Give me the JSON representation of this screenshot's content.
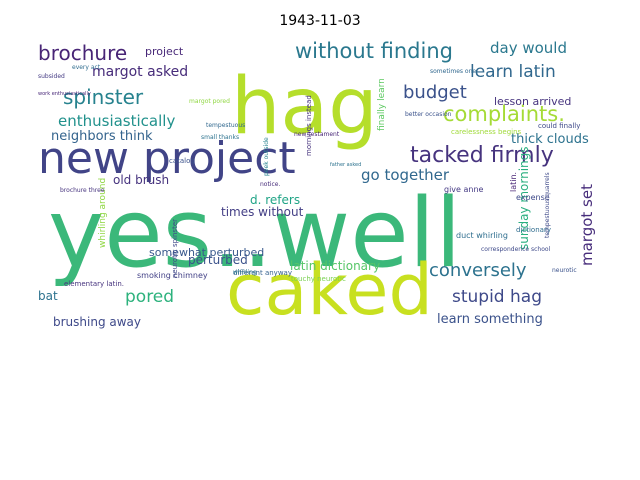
{
  "title": "1943-11-03",
  "words": [
    {
      "text": "yes..well",
      "color": "#3bb87a"
    },
    {
      "text": "hag",
      "color": "#b5de2b"
    },
    {
      "text": "caked",
      "color": "#c8e020"
    },
    {
      "text": "new project",
      "color": "#414487"
    },
    {
      "text": "tacked firmly",
      "color": "#46337e"
    },
    {
      "text": "without finding",
      "color": "#2a788e"
    },
    {
      "text": "complaints.",
      "color": "#a5db36"
    },
    {
      "text": "spinster",
      "color": "#26828e"
    },
    {
      "text": "brochure",
      "color": "#482576"
    },
    {
      "text": "budget",
      "color": "#3b528b"
    },
    {
      "text": "learn latin",
      "color": "#31688e"
    },
    {
      "text": "conversely",
      "color": "#2c728e"
    },
    {
      "text": "stupid hag",
      "color": "#3e4989"
    },
    {
      "text": "pored",
      "color": "#2db27d"
    },
    {
      "text": "enthusiastically",
      "color": "#21918c"
    },
    {
      "text": "margot asked",
      "color": "#472c7a"
    },
    {
      "text": "day would",
      "color": "#2a788e"
    },
    {
      "text": "go together",
      "color": "#31688e"
    },
    {
      "text": "margot set",
      "color": "#472d7b"
    },
    {
      "text": "neighbors think",
      "color": "#33638d"
    },
    {
      "text": "thick clouds",
      "color": "#2c728e"
    },
    {
      "text": "learn something",
      "color": "#3b528b"
    },
    {
      "text": "sunday mornings",
      "color": "#29af7f"
    },
    {
      "text": "latin dictionary",
      "color": "#56c667"
    },
    {
      "text": "brushing away",
      "color": "#3e4989"
    },
    {
      "text": "old brush",
      "color": "#46337e"
    },
    {
      "text": "times without",
      "color": "#433e85"
    },
    {
      "text": "perturbed",
      "color": "#3b528b"
    },
    {
      "text": "somewhat perturbed",
      "color": "#38588c"
    },
    {
      "text": "d. refers",
      "color": "#20a486"
    },
    {
      "text": "lesson arrived",
      "color": "#46337e"
    },
    {
      "text": "project",
      "color": "#482878"
    },
    {
      "text": "bat",
      "color": "#2c728e"
    },
    {
      "text": "finally learn",
      "color": "#5ec962"
    },
    {
      "text": "whirling around",
      "color": "#90d743"
    },
    {
      "text": "smoking chimney",
      "color": "#424086"
    },
    {
      "text": "give anne",
      "color": "#443983"
    },
    {
      "text": "expense",
      "color": "#3e4989"
    },
    {
      "text": "duct whirling",
      "color": "#2e6e8e"
    },
    {
      "text": "latin.",
      "color": "#482475"
    },
    {
      "text": "mornings instead",
      "color": "#46337e"
    },
    {
      "text": "peek outside",
      "color": "#26828e"
    },
    {
      "text": "new testament",
      "color": "#482677"
    },
    {
      "text": "carelessness begins",
      "color": "#a0da39"
    },
    {
      "text": "could finally",
      "color": "#3e4989"
    },
    {
      "text": "catalog",
      "color": "#3b528b"
    },
    {
      "text": "different anyway",
      "color": "#34618d"
    },
    {
      "text": "touchy neurotic",
      "color": "#7ad151"
    },
    {
      "text": "neurotic spinster",
      "color": "#3f4889"
    },
    {
      "text": "elementary latin.",
      "color": "#46337e"
    },
    {
      "text": "dictionary",
      "color": "#2f6c8e"
    },
    {
      "text": "better occasion",
      "color": "#3b528b"
    },
    {
      "text": "sometimes one",
      "color": "#31688e"
    },
    {
      "text": "tempestuous quarrels",
      "color": "#3e4989"
    },
    {
      "text": "correspondence school",
      "color": "#3e4989"
    },
    {
      "text": "margot pored",
      "color": "#90d743"
    },
    {
      "text": "subsided",
      "color": "#443a83"
    },
    {
      "text": "every act",
      "color": "#2f6c8e"
    },
    {
      "text": "small thanks",
      "color": "#2c728e"
    },
    {
      "text": "notice.",
      "color": "#472c7a"
    },
    {
      "text": "brochure three",
      "color": "#46337e"
    },
    {
      "text": "whirling",
      "color": "#2a788e"
    },
    {
      "text": "neurotic",
      "color": "#3b528b"
    },
    {
      "text": "work enthusiastically",
      "color": "#482878"
    },
    {
      "text": "tempestuous",
      "color": "#31688e"
    },
    {
      "text": "father asked",
      "color": "#2c728e"
    }
  ]
}
